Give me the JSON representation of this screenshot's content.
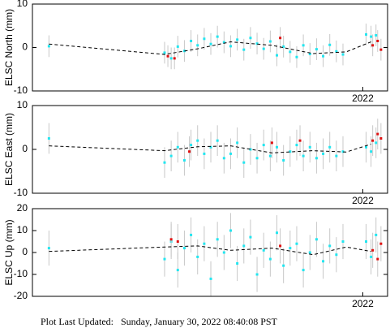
{
  "chart_data": [
    {
      "type": "scatter",
      "ylabel": "ELSC North (mm)",
      "xlim": [
        2020.0,
        2022.15
      ],
      "xticks": [
        2022
      ],
      "ylim": [
        -10,
        10
      ],
      "yticks": [
        -10,
        0,
        10
      ],
      "series": [
        {
          "type": "line",
          "color": "#000000",
          "dashed": true,
          "x": [
            2020.1,
            2020.8,
            2021.0,
            2021.2,
            2021.45,
            2021.7,
            2021.9,
            2022.05
          ],
          "values": [
            0.8,
            -1.6,
            -0.3,
            1.3,
            0.5,
            -1.4,
            -1.0,
            1.3
          ]
        },
        {
          "type": "points",
          "color": "#22e6f0",
          "error": 2.5,
          "x": [
            2020.1,
            2020.8,
            2020.84,
            2020.88,
            2020.92,
            2020.96,
            2021.0,
            2021.04,
            2021.08,
            2021.12,
            2021.16,
            2021.2,
            2021.24,
            2021.28,
            2021.32,
            2021.36,
            2021.4,
            2021.44,
            2021.48,
            2021.52,
            2021.56,
            2021.6,
            2021.64,
            2021.68,
            2021.72,
            2021.76,
            2021.8,
            2021.84,
            2021.88,
            2022.02,
            2022.05,
            2022.08
          ],
          "values": [
            0.3,
            -1.2,
            -2.5,
            0.2,
            -0.8,
            1.5,
            0.5,
            2.0,
            0.8,
            2.5,
            1.2,
            0.3,
            1.8,
            -0.5,
            2.2,
            0.9,
            -0.3,
            1.4,
            -1.8,
            0.2,
            -1.0,
            -2.2,
            0.5,
            -1.5,
            -0.4,
            -2.0,
            0.6,
            -0.9,
            -1.6,
            3.0,
            2.5,
            2.8
          ]
        },
        {
          "type": "points",
          "color": "#e01010",
          "error": 2.5,
          "x": [
            2020.82,
            2020.86,
            2021.5,
            2022.06,
            2022.09,
            2022.11
          ],
          "values": [
            -2.0,
            -2.5,
            2.2,
            0.5,
            1.5,
            -0.5
          ]
        }
      ]
    },
    {
      "type": "scatter",
      "ylabel": "ELSC East (mm)",
      "xlim": [
        2020.0,
        2022.15
      ],
      "xticks": [
        2022
      ],
      "ylim": [
        -10,
        10
      ],
      "yticks": [
        -10,
        0,
        10
      ],
      "series": [
        {
          "type": "line",
          "color": "#000000",
          "dashed": true,
          "x": [
            2020.1,
            2020.8,
            2021.0,
            2021.2,
            2021.45,
            2021.7,
            2021.9,
            2022.05
          ],
          "values": [
            0.8,
            -0.3,
            0.6,
            0.8,
            -0.8,
            -0.3,
            -0.6,
            1.2
          ]
        },
        {
          "type": "points",
          "color": "#22e6f0",
          "error": 3.5,
          "x": [
            2020.1,
            2020.8,
            2020.84,
            2020.88,
            2020.92,
            2020.96,
            2021.0,
            2021.04,
            2021.08,
            2021.12,
            2021.16,
            2021.2,
            2021.24,
            2021.28,
            2021.32,
            2021.36,
            2021.4,
            2021.44,
            2021.48,
            2021.52,
            2021.56,
            2021.6,
            2021.64,
            2021.68,
            2021.72,
            2021.76,
            2021.8,
            2021.84,
            2021.88,
            2022.02,
            2022.05,
            2022.08
          ],
          "values": [
            2.5,
            -3.0,
            -1.5,
            0.5,
            -2.5,
            1.0,
            2.0,
            -1.0,
            0.5,
            2.0,
            -2.0,
            -1.0,
            1.5,
            -3.0,
            0.0,
            -2.0,
            1.0,
            -1.5,
            0.5,
            -2.5,
            -0.5,
            1.0,
            -1.5,
            0.5,
            -2.0,
            -1.0,
            0.5,
            -1.5,
            -0.5,
            0.5,
            -0.5,
            1.5
          ]
        },
        {
          "type": "points",
          "color": "#e01010",
          "error": 3.5,
          "x": [
            2020.95,
            2021.45,
            2021.62,
            2022.06,
            2022.09,
            2022.11
          ],
          "values": [
            -0.5,
            1.5,
            2.0,
            2.0,
            3.5,
            2.5
          ]
        }
      ]
    },
    {
      "type": "scatter",
      "ylabel": "ELSC Up (mm)",
      "xlim": [
        2020.0,
        2022.15
      ],
      "xticks": [
        2022
      ],
      "ylim": [
        -20,
        20
      ],
      "yticks": [
        -20,
        -10,
        0,
        10,
        20
      ],
      "series": [
        {
          "type": "line",
          "color": "#000000",
          "dashed": true,
          "x": [
            2020.1,
            2020.8,
            2021.0,
            2021.2,
            2021.45,
            2021.7,
            2021.9,
            2022.05
          ],
          "values": [
            0.5,
            2.5,
            3.0,
            1.0,
            2.0,
            -1.0,
            2.5,
            0.5
          ]
        },
        {
          "type": "points",
          "color": "#22e6f0",
          "error": 8,
          "x": [
            2020.1,
            2020.8,
            2020.84,
            2020.88,
            2020.92,
            2020.96,
            2021.0,
            2021.04,
            2021.08,
            2021.12,
            2021.16,
            2021.2,
            2021.24,
            2021.28,
            2021.32,
            2021.36,
            2021.4,
            2021.44,
            2021.48,
            2021.52,
            2021.56,
            2021.6,
            2021.64,
            2021.68,
            2021.72,
            2021.76,
            2021.8,
            2021.84,
            2021.88,
            2022.02,
            2022.05,
            2022.08
          ],
          "values": [
            2,
            -3,
            5,
            -8,
            2,
            8,
            -2,
            4,
            -12,
            6,
            0,
            10,
            -5,
            3,
            7,
            -10,
            1,
            -3,
            9,
            -6,
            2,
            4,
            -8,
            0,
            6,
            -4,
            3,
            -1,
            5,
            5,
            -2,
            8
          ]
        },
        {
          "type": "points",
          "color": "#e01010",
          "error": 8,
          "x": [
            2020.84,
            2020.88,
            2021.5,
            2022.06,
            2022.09,
            2022.11
          ],
          "values": [
            6,
            5,
            3,
            1,
            -3,
            4
          ]
        }
      ]
    }
  ],
  "footer": "Plot Last Updated:   Sunday, January 30, 2022 08:40:08 PST"
}
